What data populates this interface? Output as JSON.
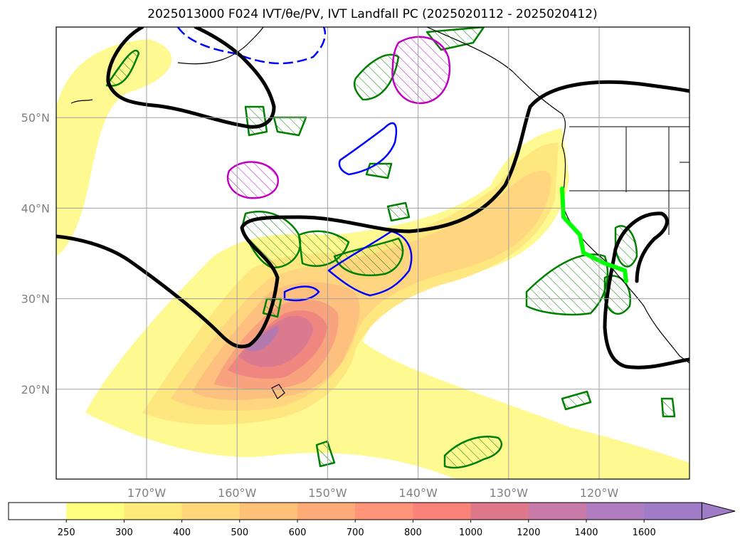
{
  "title": "2025013000 F024 IVT/θe/PV, IVT Landfall PC (2025020112 - 2025020412)",
  "map": {
    "lat_labels": [
      "50°N",
      "40°N",
      "30°N",
      "20°N"
    ],
    "lon_labels": [
      "170°W",
      "160°W",
      "150°W",
      "140°W",
      "130°W",
      "120°W"
    ],
    "extent": {
      "lon_min": -180,
      "lon_max": -110,
      "lat_min": 10,
      "lat_max": 60
    },
    "grid": true
  },
  "colorbar": {
    "ticks": [
      "250",
      "300",
      "400",
      "500",
      "600",
      "700",
      "800",
      "1000",
      "1200",
      "1400",
      "1600"
    ],
    "colors": [
      "#ffffff",
      "#ffff7f",
      "#ffea7a",
      "#ffd67a",
      "#ffc178",
      "#ffab78",
      "#ff9478",
      "#fa8278",
      "#e0788c",
      "#c87aa8",
      "#b07cc0",
      "#a07cc8"
    ]
  },
  "overlays": {
    "ivt_fill_colors": [
      "#fff98c",
      "#ffe680",
      "#ffd47e",
      "#fdbf7e",
      "#f8a07e",
      "#ee857f",
      "#d97890",
      "#b27ab0"
    ],
    "contour_colors": {
      "thick": "#000000",
      "green": "#008000",
      "blue": "#0000ff",
      "magenta": "#c000c0",
      "landfall": "#00ff00"
    }
  }
}
